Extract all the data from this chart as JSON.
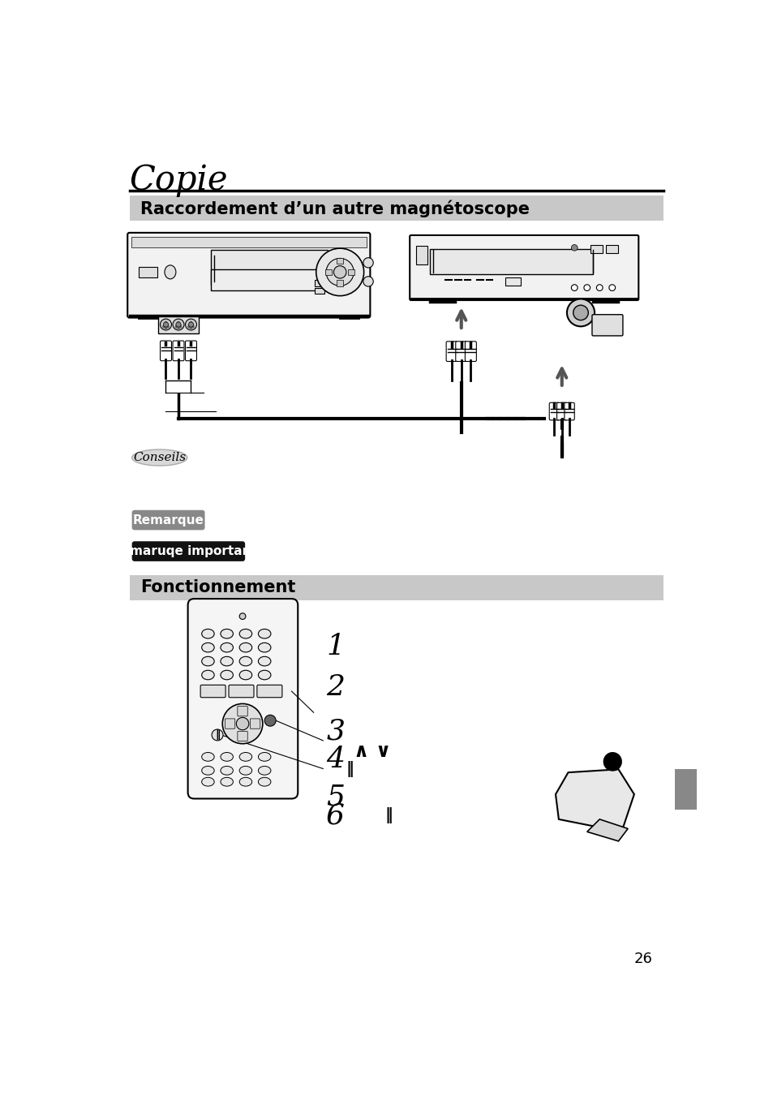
{
  "title": "Copie",
  "section1": "Raccordement d’un autre magnétoscope",
  "section2": "Fonctionnement",
  "conseils_label": "Conseils",
  "remarque_label": "Remarque",
  "remarque_imp_label": "Remaruqe importante",
  "page_number": "26",
  "bg_color": "#ffffff",
  "section_bg": "#c8c8c8",
  "title_font_size": 30,
  "section_font_size": 15
}
